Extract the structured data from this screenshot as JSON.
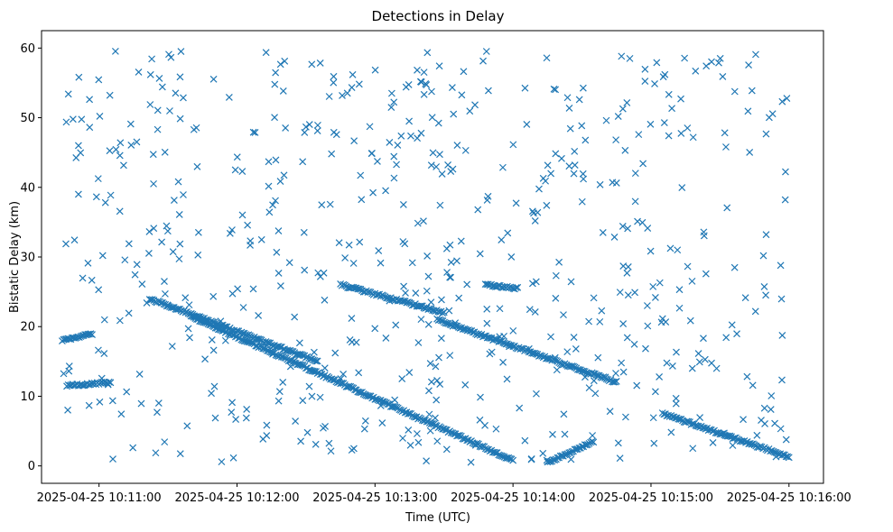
{
  "chart_data": {
    "type": "scatter",
    "title": "Detections in Delay",
    "xlabel": "Time (UTC)",
    "ylabel": "Bistatic Delay (km)",
    "marker": "x",
    "color": "#1f77b4",
    "grid": false,
    "legend": "none",
    "x_start": "2025-04-25 10:10:44",
    "x_end": "2025-04-25 10:16:00",
    "xlim": [
      "2025-04-25 10:10:35",
      "2025-04-25 10:16:15"
    ],
    "ylim": [
      -2.5,
      62.5
    ],
    "x_ticks": [
      "2025-04-25 10:11:00",
      "2025-04-25 10:12:00",
      "2025-04-25 10:13:00",
      "2025-04-25 10:14:00",
      "2025-04-25 10:15:00",
      "2025-04-25 10:16:00"
    ],
    "y_ticks": [
      0,
      10,
      20,
      30,
      40,
      50,
      60
    ],
    "tracks": [
      {
        "start": "2025-04-25 10:10:44",
        "end": "2025-04-25 10:10:57",
        "y": [
          18.0,
          19.0
        ]
      },
      {
        "start": "2025-04-25 10:10:46",
        "end": "2025-04-25 10:11:05",
        "y": [
          11.5,
          12.0
        ]
      },
      {
        "start": "2025-04-25 10:11:22",
        "end": "2025-04-25 10:12:35",
        "y": [
          24.0,
          15.0
        ]
      },
      {
        "start": "2025-04-25 10:11:40",
        "end": "2025-04-25 10:14:00",
        "y": [
          21.5,
          0.8
        ]
      },
      {
        "start": "2025-04-25 10:12:45",
        "end": "2025-04-25 10:13:30",
        "y": [
          26.0,
          22.0
        ]
      },
      {
        "start": "2025-04-25 10:13:27",
        "end": "2025-04-25 10:14:45",
        "y": [
          21.0,
          12.0
        ]
      },
      {
        "start": "2025-04-25 10:13:48",
        "end": "2025-04-25 10:14:02",
        "y": [
          26.0,
          25.5
        ]
      },
      {
        "start": "2025-04-25 10:14:15",
        "end": "2025-04-25 10:14:35",
        "y": [
          0.5,
          3.5
        ]
      },
      {
        "start": "2025-04-25 10:15:05",
        "end": "2025-04-25 10:16:00",
        "y": [
          7.5,
          1.3
        ]
      }
    ],
    "noise_points_approx": 600,
    "noise_y_range": [
      0.5,
      60
    ]
  }
}
